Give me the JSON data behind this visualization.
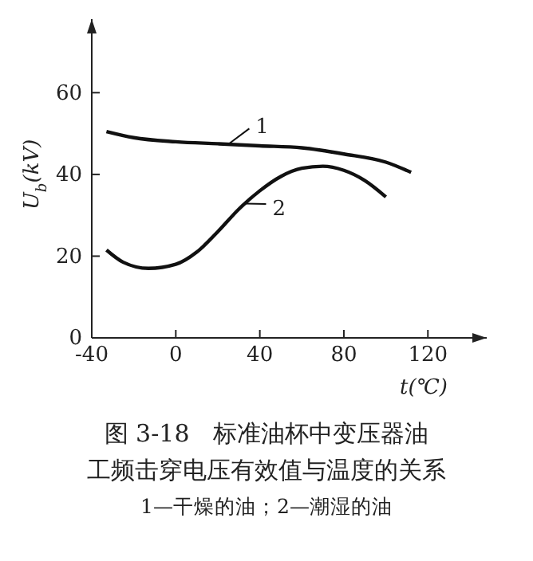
{
  "chart_data": {
    "type": "line",
    "title": "图 3-18　标准油杯中变压器油工频击穿电压有效值与温度的关系",
    "subtitle": "1—干燥的油；2—潮湿的油",
    "xlabel": "t(℃)",
    "ylabel": "U$_{b}$(kV)",
    "xlim": [
      -40,
      148
    ],
    "ylim": [
      0,
      78
    ],
    "xticks": [
      -40,
      0,
      40,
      80,
      120
    ],
    "yticks": [
      0,
      20,
      40,
      60
    ],
    "grid": false,
    "legend": "top",
    "marker": "none",
    "line_style": "solid",
    "series": [
      {
        "name": "1",
        "color": "#111111",
        "x": [
          -33,
          -20,
          0,
          20,
          40,
          60,
          80,
          100,
          112
        ],
        "values": [
          50.5,
          49,
          48,
          47.5,
          47,
          46.5,
          45,
          43,
          40.5
        ]
      },
      {
        "name": "2",
        "color": "#111111",
        "x": [
          -33,
          -25,
          -13,
          0,
          10,
          20,
          30,
          40,
          50,
          60,
          70,
          80,
          90,
          100
        ],
        "values": [
          21.5,
          18.5,
          17,
          18,
          21,
          26,
          31.5,
          36,
          39.5,
          41.5,
          42,
          41,
          38.5,
          34.5
        ]
      }
    ]
  }
}
